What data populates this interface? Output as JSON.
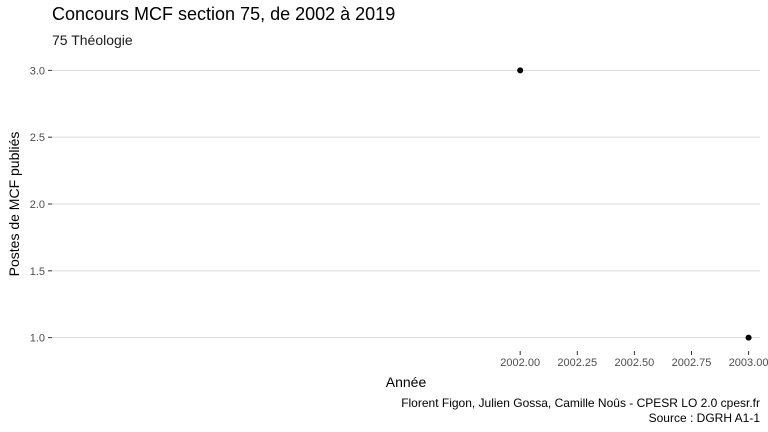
{
  "chart_data": {
    "type": "scatter",
    "title": "Concours MCF section 75, de 2002 à 2019",
    "subtitle": "75 Théologie",
    "xlabel": "Année",
    "ylabel": "Postes de MCF publiés",
    "xlim": [
      1999.95,
      2003.05
    ],
    "ylim": [
      0.9,
      3.1
    ],
    "x_ticks": [
      2002.0,
      2002.25,
      2002.5,
      2002.75,
      2003.0
    ],
    "x_tick_labels": [
      "2002.00",
      "2002.25",
      "2002.50",
      "2002.75",
      "2003.00"
    ],
    "y_ticks": [
      1.0,
      1.5,
      2.0,
      2.5,
      3.0
    ],
    "y_tick_labels": [
      "1.0",
      "1.5",
      "2.0",
      "2.5",
      "3.0"
    ],
    "grid": true,
    "points": [
      {
        "x": 2002.0,
        "y": 3.0
      },
      {
        "x": 2003.0,
        "y": 1.0
      }
    ],
    "caption": [
      "Florent Figon, Julien Gossa, Camille Noûs - CPESR LO 2.0 cpesr.fr",
      "Source : DGRH A1-1"
    ],
    "colors": {
      "point": "#000000",
      "grid": "#d9d9d9",
      "tick_text": "#4d4d4d"
    }
  }
}
